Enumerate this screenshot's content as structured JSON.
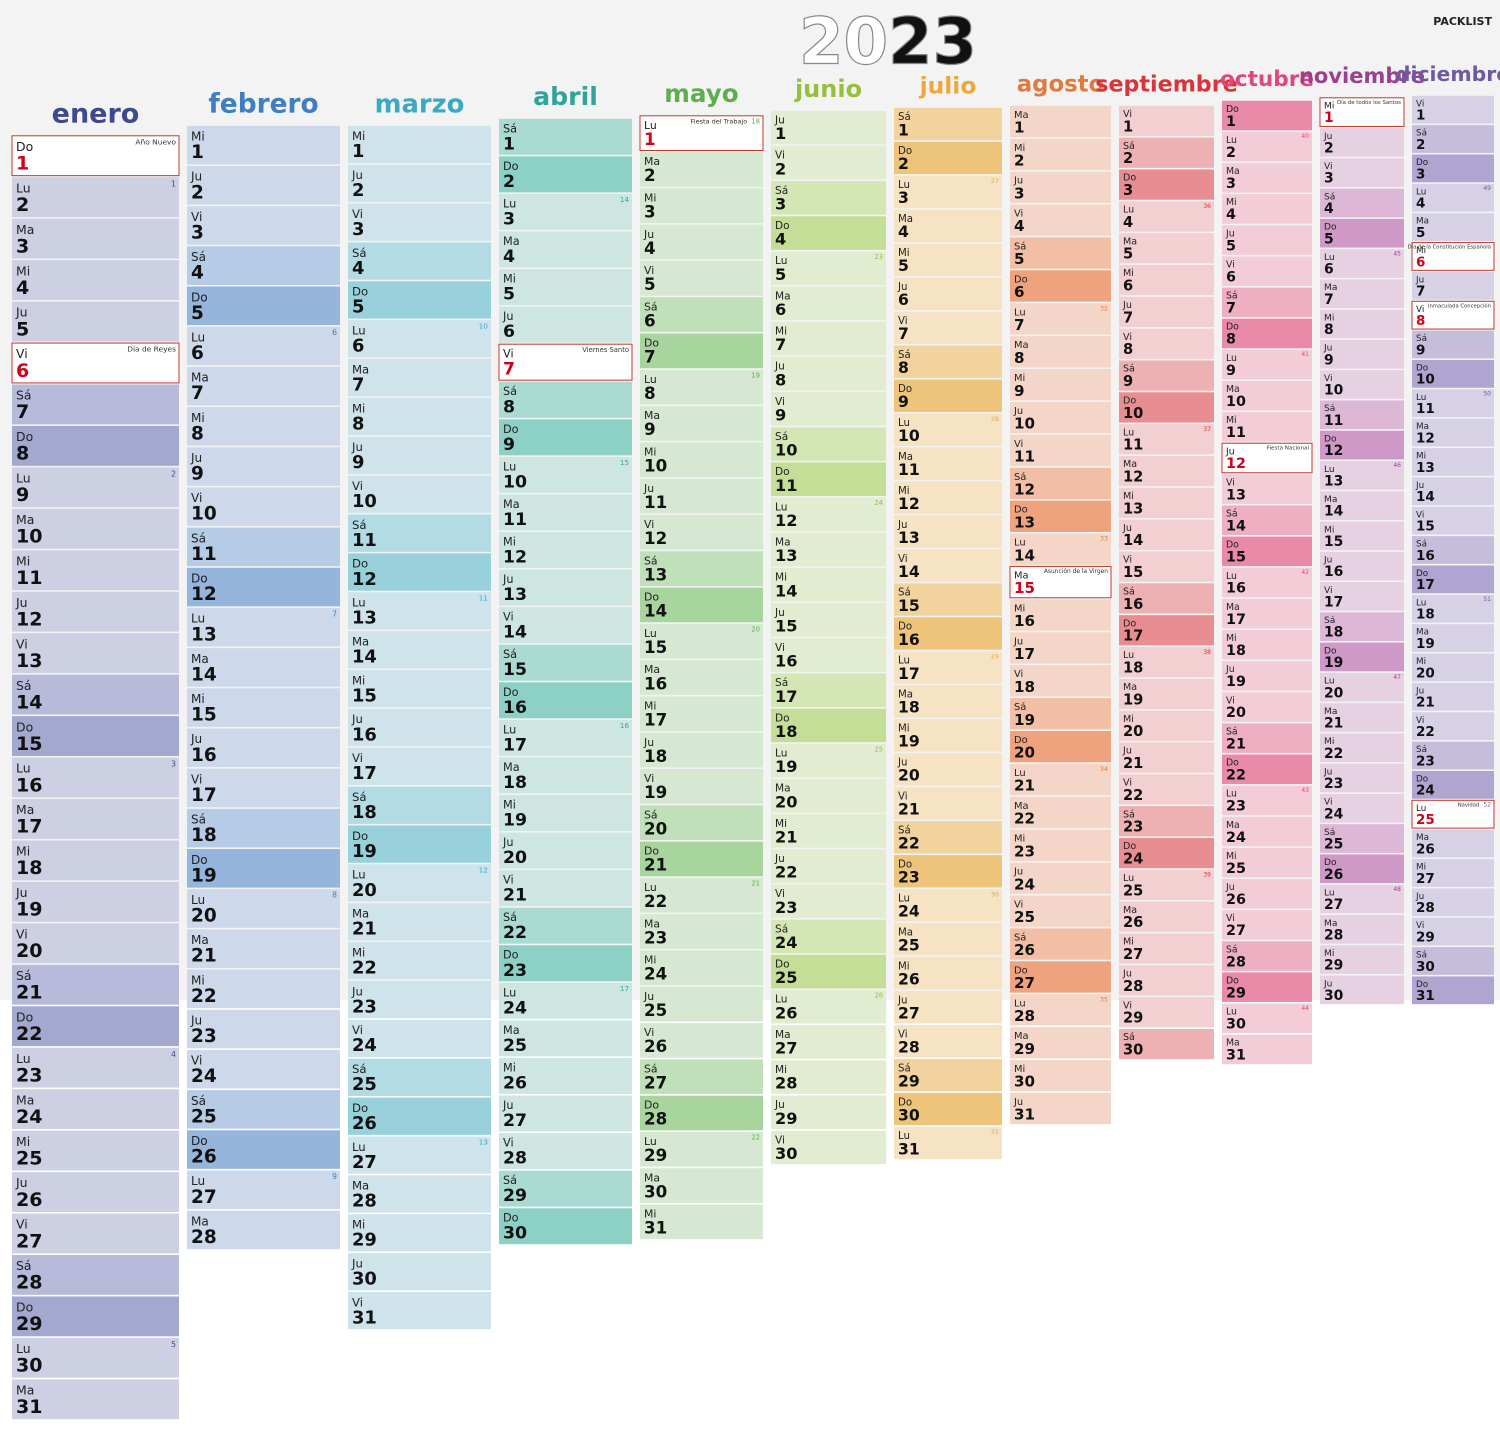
{
  "title": "2023",
  "brand": "PACKLIST",
  "months": [
    {
      "name": "enero",
      "weekdays": [
        "Do",
        "Lu",
        "Ma",
        "Mi",
        "Ju",
        "Vi",
        "Sá",
        "Do",
        "Lu",
        "Ma",
        "Mi",
        "Ju",
        "Vi",
        "Sá",
        "Do",
        "Lu",
        "Ma",
        "Mi",
        "Ju",
        "Vi",
        "Sá",
        "Do",
        "Lu",
        "Ma",
        "Mi",
        "Ju",
        "Vi",
        "Sá",
        "Do",
        "Lu",
        "Ma"
      ],
      "days": [
        1,
        2,
        3,
        4,
        5,
        6,
        7,
        8,
        9,
        10,
        11,
        12,
        13,
        14,
        15,
        16,
        17,
        18,
        19,
        20,
        21,
        22,
        23,
        24,
        25,
        26,
        27,
        28,
        29,
        30,
        31
      ],
      "weeks": [
        {
          "day": 2,
          "week": 1
        },
        {
          "day": 9,
          "week": 2
        },
        {
          "day": 16,
          "week": 3
        },
        {
          "day": 23,
          "week": 4
        },
        {
          "day": 30,
          "week": 5
        }
      ],
      "holidays": [
        {
          "day": 1,
          "name": "Año Nuevo"
        },
        {
          "day": 6,
          "name": "Día de Reyes"
        }
      ]
    },
    {
      "name": "febrero",
      "weekdays": [
        "Mi",
        "Ju",
        "Vi",
        "Sá",
        "Do",
        "Lu",
        "Ma",
        "Mi",
        "Ju",
        "Vi",
        "Sá",
        "Do",
        "Lu",
        "Ma",
        "Mi",
        "Ju",
        "Vi",
        "Sá",
        "Do",
        "Lu",
        "Ma",
        "Mi",
        "Ju",
        "Vi",
        "Sá",
        "Do",
        "Lu",
        "Ma"
      ],
      "days": [
        1,
        2,
        3,
        4,
        5,
        6,
        7,
        8,
        9,
        10,
        11,
        12,
        13,
        14,
        15,
        16,
        17,
        18,
        19,
        20,
        21,
        22,
        23,
        24,
        25,
        26,
        27,
        28
      ],
      "weeks": [
        {
          "day": 6,
          "week": 6
        },
        {
          "day": 13,
          "week": 7
        },
        {
          "day": 20,
          "week": 8
        },
        {
          "day": 27,
          "week": 9
        }
      ],
      "holidays": []
    },
    {
      "name": "marzo",
      "weekdays": [
        "Mi",
        "Ju",
        "Vi",
        "Sá",
        "Do",
        "Lu",
        "Ma",
        "Mi",
        "Ju",
        "Vi",
        "Sá",
        "Do",
        "Lu",
        "Ma",
        "Mi",
        "Ju",
        "Vi",
        "Sá",
        "Do",
        "Lu",
        "Ma",
        "Mi",
        "Ju",
        "Vi",
        "Sá",
        "Do",
        "Lu",
        "Ma",
        "Mi",
        "Ju",
        "Vi"
      ],
      "days": [
        1,
        2,
        3,
        4,
        5,
        6,
        7,
        8,
        9,
        10,
        11,
        12,
        13,
        14,
        15,
        16,
        17,
        18,
        19,
        20,
        21,
        22,
        23,
        24,
        25,
        26,
        27,
        28,
        29,
        30,
        31
      ],
      "weeks": [
        {
          "day": 6,
          "week": 10
        },
        {
          "day": 13,
          "week": 11
        },
        {
          "day": 20,
          "week": 12
        },
        {
          "day": 27,
          "week": 13
        }
      ],
      "holidays": []
    },
    {
      "name": "abril",
      "weekdays": [
        "Sá",
        "Do",
        "Lu",
        "Ma",
        "Mi",
        "Ju",
        "Vi",
        "Sá",
        "Do",
        "Lu",
        "Ma",
        "Mi",
        "Ju",
        "Vi",
        "Sá",
        "Do",
        "Lu",
        "Ma",
        "Mi",
        "Ju",
        "Vi",
        "Sá",
        "Do",
        "Lu",
        "Ma",
        "Mi",
        "Ju",
        "Vi",
        "Sá",
        "Do"
      ],
      "days": [
        1,
        2,
        3,
        4,
        5,
        6,
        7,
        8,
        9,
        10,
        11,
        12,
        13,
        14,
        15,
        16,
        17,
        18,
        19,
        20,
        21,
        22,
        23,
        24,
        25,
        26,
        27,
        28,
        29,
        30
      ],
      "weeks": [
        {
          "day": 3,
          "week": 14
        },
        {
          "day": 10,
          "week": 15
        },
        {
          "day": 17,
          "week": 16
        },
        {
          "day": 24,
          "week": 17
        }
      ],
      "holidays": [
        {
          "day": 7,
          "name": "Viernes Santo"
        }
      ]
    },
    {
      "name": "mayo",
      "weekdays": [
        "Lu",
        "Ma",
        "Mi",
        "Ju",
        "Vi",
        "Sá",
        "Do",
        "Lu",
        "Ma",
        "Mi",
        "Ju",
        "Vi",
        "Sá",
        "Do",
        "Lu",
        "Ma",
        "Mi",
        "Ju",
        "Vi",
        "Sá",
        "Do",
        "Lu",
        "Ma",
        "Mi",
        "Ju",
        "Vi",
        "Sá",
        "Do",
        "Lu",
        "Ma",
        "Mi"
      ],
      "days": [
        1,
        2,
        3,
        4,
        5,
        6,
        7,
        8,
        9,
        10,
        11,
        12,
        13,
        14,
        15,
        16,
        17,
        18,
        19,
        20,
        21,
        22,
        23,
        24,
        25,
        26,
        27,
        28,
        29,
        30,
        31
      ],
      "weeks": [
        {
          "day": 1,
          "week": 18
        },
        {
          "day": 8,
          "week": 19
        },
        {
          "day": 15,
          "week": 20
        },
        {
          "day": 22,
          "week": 21
        },
        {
          "day": 29,
          "week": 22
        }
      ],
      "holidays": [
        {
          "day": 1,
          "name": "Fiesta del Trabajo"
        }
      ]
    },
    {
      "name": "junio",
      "weekdays": [
        "Ju",
        "Vi",
        "Sá",
        "Do",
        "Lu",
        "Ma",
        "Mi",
        "Ju",
        "Vi",
        "Sá",
        "Do",
        "Lu",
        "Ma",
        "Mi",
        "Ju",
        "Vi",
        "Sá",
        "Do",
        "Lu",
        "Ma",
        "Mi",
        "Ju",
        "Vi",
        "Sá",
        "Do",
        "Lu",
        "Ma",
        "Mi",
        "Ju",
        "Vi"
      ],
      "days": [
        1,
        2,
        3,
        4,
        5,
        6,
        7,
        8,
        9,
        10,
        11,
        12,
        13,
        14,
        15,
        16,
        17,
        18,
        19,
        20,
        21,
        22,
        23,
        24,
        25,
        26,
        27,
        28,
        29,
        30
      ],
      "weeks": [
        {
          "day": 5,
          "week": 23
        },
        {
          "day": 12,
          "week": 24
        },
        {
          "day": 19,
          "week": 25
        },
        {
          "day": 26,
          "week": 26
        }
      ],
      "holidays": []
    },
    {
      "name": "julio",
      "weekdays": [
        "Sá",
        "Do",
        "Lu",
        "Ma",
        "Mi",
        "Ju",
        "Vi",
        "Sá",
        "Do",
        "Lu",
        "Ma",
        "Mi",
        "Ju",
        "Vi",
        "Sá",
        "Do",
        "Lu",
        "Ma",
        "Mi",
        "Ju",
        "Vi",
        "Sá",
        "Do",
        "Lu",
        "Ma",
        "Mi",
        "Ju",
        "Vi",
        "Sá",
        "Do",
        "Lu"
      ],
      "days": [
        1,
        2,
        3,
        4,
        5,
        6,
        7,
        8,
        9,
        10,
        11,
        12,
        13,
        14,
        15,
        16,
        17,
        18,
        19,
        20,
        21,
        22,
        23,
        24,
        25,
        26,
        27,
        28,
        29,
        30,
        31
      ],
      "weeks": [
        {
          "day": 3,
          "week": 27
        },
        {
          "day": 10,
          "week": 28
        },
        {
          "day": 17,
          "week": 29
        },
        {
          "day": 24,
          "week": 30
        },
        {
          "day": 31,
          "week": 31
        }
      ],
      "holidays": []
    },
    {
      "name": "agosto",
      "weekdays": [
        "Ma",
        "Mi",
        "Ju",
        "Vi",
        "Sá",
        "Do",
        "Lu",
        "Ma",
        "Mi",
        "Ju",
        "Vi",
        "Sá",
        "Do",
        "Lu",
        "Ma",
        "Mi",
        "Ju",
        "Vi",
        "Sá",
        "Do",
        "Lu",
        "Ma",
        "Mi",
        "Ju",
        "Vi",
        "Sá",
        "Do",
        "Lu",
        "Ma",
        "Mi",
        "Ju"
      ],
      "days": [
        1,
        2,
        3,
        4,
        5,
        6,
        7,
        8,
        9,
        10,
        11,
        12,
        13,
        14,
        15,
        16,
        17,
        18,
        19,
        20,
        21,
        22,
        23,
        24,
        25,
        26,
        27,
        28,
        29,
        30,
        31
      ],
      "weeks": [
        {
          "day": 7,
          "week": 32
        },
        {
          "day": 14,
          "week": 33
        },
        {
          "day": 21,
          "week": 34
        },
        {
          "day": 28,
          "week": 35
        }
      ],
      "holidays": [
        {
          "day": 15,
          "name": "Asunción de la Virgen"
        }
      ]
    },
    {
      "name": "septiembre",
      "weekdays": [
        "Vi",
        "Sá",
        "Do",
        "Lu",
        "Ma",
        "Mi",
        "Ju",
        "Vi",
        "Sá",
        "Do",
        "Lu",
        "Ma",
        "Mi",
        "Ju",
        "Vi",
        "Sá",
        "Do",
        "Lu",
        "Ma",
        "Mi",
        "Ju",
        "Vi",
        "Sá",
        "Do",
        "Lu",
        "Ma",
        "Mi",
        "Ju",
        "Vi",
        "Sá"
      ],
      "days": [
        1,
        2,
        3,
        4,
        5,
        6,
        7,
        8,
        9,
        10,
        11,
        12,
        13,
        14,
        15,
        16,
        17,
        18,
        19,
        20,
        21,
        22,
        23,
        24,
        25,
        26,
        27,
        28,
        29,
        30
      ],
      "weeks": [
        {
          "day": 4,
          "week": 36
        },
        {
          "day": 11,
          "week": 37
        },
        {
          "day": 18,
          "week": 38
        },
        {
          "day": 25,
          "week": 39
        }
      ],
      "holidays": []
    },
    {
      "name": "octubre",
      "weekdays": [
        "Do",
        "Lu",
        "Ma",
        "Mi",
        "Ju",
        "Vi",
        "Sá",
        "Do",
        "Lu",
        "Ma",
        "Mi",
        "Ju",
        "Vi",
        "Sá",
        "Do",
        "Lu",
        "Ma",
        "Mi",
        "Ju",
        "Vi",
        "Sá",
        "Do",
        "Lu",
        "Ma",
        "Mi",
        "Ju",
        "Vi",
        "Sá",
        "Do",
        "Lu",
        "Ma"
      ],
      "days": [
        1,
        2,
        3,
        4,
        5,
        6,
        7,
        8,
        9,
        10,
        11,
        12,
        13,
        14,
        15,
        16,
        17,
        18,
        19,
        20,
        21,
        22,
        23,
        24,
        25,
        26,
        27,
        28,
        29,
        30,
        31
      ],
      "weeks": [
        {
          "day": 2,
          "week": 40
        },
        {
          "day": 9,
          "week": 41
        },
        {
          "day": 16,
          "week": 42
        },
        {
          "day": 23,
          "week": 43
        },
        {
          "day": 30,
          "week": 44
        }
      ],
      "holidays": [
        {
          "day": 12,
          "name": "Fiesta Nacional"
        }
      ]
    },
    {
      "name": "noviembre",
      "weekdays": [
        "Mi",
        "Ju",
        "Vi",
        "Sá",
        "Do",
        "Lu",
        "Ma",
        "Mi",
        "Ju",
        "Vi",
        "Sá",
        "Do",
        "Lu",
        "Ma",
        "Mi",
        "Ju",
        "Vi",
        "Sá",
        "Do",
        "Lu",
        "Ma",
        "Mi",
        "Ju",
        "Vi",
        "Sá",
        "Do",
        "Lu",
        "Ma",
        "Mi",
        "Ju"
      ],
      "days": [
        1,
        2,
        3,
        4,
        5,
        6,
        7,
        8,
        9,
        10,
        11,
        12,
        13,
        14,
        15,
        16,
        17,
        18,
        19,
        20,
        21,
        22,
        23,
        24,
        25,
        26,
        27,
        28,
        29,
        30
      ],
      "weeks": [
        {
          "day": 6,
          "week": 45
        },
        {
          "day": 13,
          "week": 46
        },
        {
          "day": 20,
          "week": 47
        },
        {
          "day": 27,
          "week": 48
        }
      ],
      "holidays": [
        {
          "day": 1,
          "name": "Día de todos los Santos"
        }
      ]
    },
    {
      "name": "diciembre",
      "weekdays": [
        "Vi",
        "Sá",
        "Do",
        "Lu",
        "Ma",
        "Mi",
        "Ju",
        "Vi",
        "Sá",
        "Do",
        "Lu",
        "Ma",
        "Mi",
        "Ju",
        "Vi",
        "Sá",
        "Do",
        "Lu",
        "Ma",
        "Mi",
        "Ju",
        "Vi",
        "Sá",
        "Do",
        "Lu",
        "Ma",
        "Mi",
        "Ju",
        "Vi",
        "Sá",
        "Do"
      ],
      "days": [
        1,
        2,
        3,
        4,
        5,
        6,
        7,
        8,
        9,
        10,
        11,
        12,
        13,
        14,
        15,
        16,
        17,
        18,
        19,
        20,
        21,
        22,
        23,
        24,
        25,
        26,
        27,
        28,
        29,
        30,
        31
      ],
      "weeks": [
        {
          "day": 4,
          "week": 49
        },
        {
          "day": 11,
          "week": 50
        },
        {
          "day": 18,
          "week": 51
        },
        {
          "day": 25,
          "week": 52
        }
      ],
      "holidays": [
        {
          "day": 6,
          "name": "Día de la Constitución Española"
        },
        {
          "day": 8,
          "name": "Inmaculada Concepción"
        },
        {
          "day": 25,
          "name": "Navidad"
        }
      ]
    }
  ]
}
